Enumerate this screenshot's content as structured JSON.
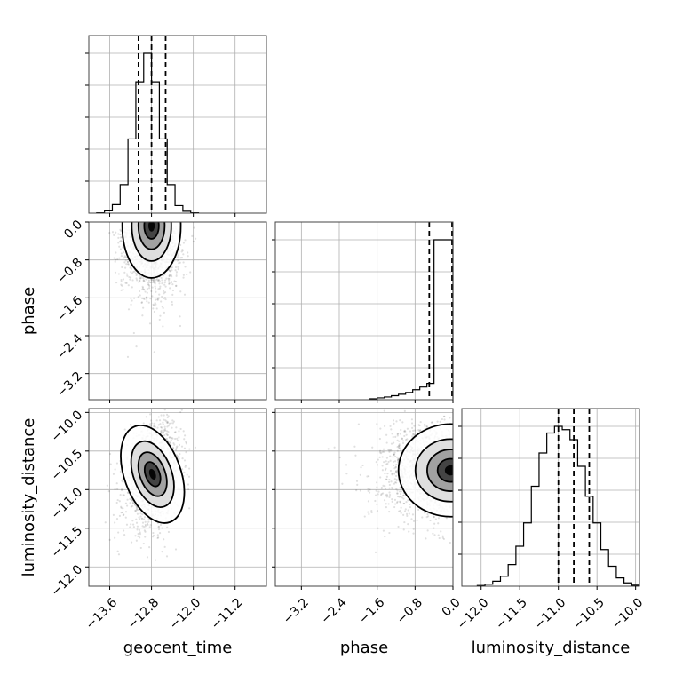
{
  "chart_data": {
    "type": "corner",
    "parameters": [
      "geocent_time",
      "phase",
      "luminosity_distance"
    ],
    "ranges": {
      "geocent_time": [
        -14.0,
        -10.6
      ],
      "phase": [
        -3.75,
        0.0
      ],
      "luminosity_distance": [
        -12.25,
        -9.95
      ]
    },
    "ticks": {
      "geocent_time": [
        -13.6,
        -12.8,
        -12.0,
        -11.2
      ],
      "phase": [
        -3.2,
        -2.4,
        -1.6,
        -0.8,
        0.0
      ],
      "luminosity_distance": [
        -12.0,
        -11.5,
        -11.0,
        -10.5,
        -10.0
      ]
    },
    "tick_labels": {
      "geocent_time": [
        "−13.6",
        "−12.8",
        "−12.0",
        "−11.2"
      ],
      "phase": [
        "−3.2",
        "−2.4",
        "−1.6",
        "−0.8",
        "0.0"
      ],
      "luminosity_distance": [
        "−12.0",
        "−11.5",
        "−11.0",
        "−10.5",
        "−10.0"
      ]
    },
    "labels": {
      "geocent_time": "geocent_time",
      "phase": "phase",
      "luminosity_distance": "luminosity_distance"
    },
    "quantiles": {
      "geocent_time": [
        -13.05,
        -12.8,
        -12.53
      ],
      "phase": [
        -0.5,
        0.0
      ],
      "luminosity_distance": [
        -11.0,
        -10.8,
        -10.6
      ]
    },
    "histograms": {
      "geocent_time": {
        "bins": [
          -13.85,
          -13.7,
          -13.55,
          -13.4,
          -13.25,
          -13.1,
          -12.95,
          -12.8,
          -12.65,
          -12.5,
          -12.35,
          -12.2,
          -12.05,
          -11.9
        ],
        "counts": [
          0.2,
          1.2,
          4.5,
          15.0,
          39.0,
          69.0,
          84.0,
          69.0,
          39.0,
          15.0,
          4.0,
          1.0,
          0.2
        ]
      },
      "phase": {
        "bins": [
          -1.75,
          -1.6,
          -1.45,
          -1.3,
          -1.15,
          -1.0,
          -0.85,
          -0.7,
          -0.55,
          -0.4,
          -0.25,
          -0.1,
          0.0
        ],
        "counts": [
          0.5,
          1.0,
          1.5,
          2.2,
          3.0,
          4.0,
          5.5,
          7.0,
          9.0,
          88.0,
          88.0,
          88.0
        ]
      },
      "luminosity_distance": {
        "bins": [
          -12.05,
          -11.95,
          -11.85,
          -11.75,
          -11.65,
          -11.55,
          -11.45,
          -11.35,
          -11.25,
          -11.15,
          -11.05,
          -10.95,
          -10.85,
          -10.75,
          -10.65,
          -10.55,
          -10.45,
          -10.35,
          -10.25,
          -10.15,
          -10.05,
          -9.95
        ],
        "counts": [
          0.2,
          0.6,
          1.5,
          3.0,
          6.5,
          12.0,
          19.0,
          30.0,
          40.0,
          46.0,
          48.0,
          47.0,
          44.0,
          36.0,
          27.0,
          19.0,
          11.0,
          6.0,
          2.5,
          1.0,
          0.3
        ]
      }
    },
    "joint": {
      "phase_vs_geocent_time": {
        "x_center": -12.8,
        "y_center": -0.08,
        "x_sd": 0.28,
        "y_sd": 0.55
      },
      "luminosity_distance_vs_geocent_time": {
        "x_center": -12.78,
        "y_center": -10.8,
        "x_sd": 0.27,
        "y_sd": 0.33
      },
      "luminosity_distance_vs_phase": {
        "x_center": -0.05,
        "y_center": -10.75,
        "x_sd": 0.55,
        "y_sd": 0.3
      }
    },
    "grid": true
  }
}
